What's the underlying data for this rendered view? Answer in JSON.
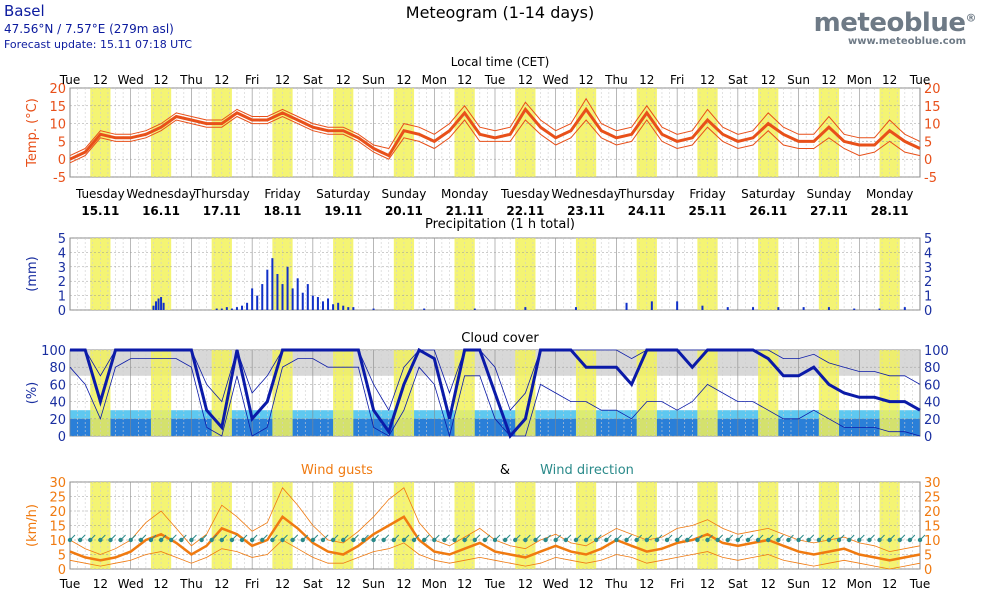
{
  "header": {
    "city": "Basel",
    "coords": "47.56°N / 7.57°E (279m asl)",
    "update": "Forecast update: 15.11 07:18 UTC",
    "title": "Meteogram (1-14 days)",
    "logo": "meteoblue",
    "logo_reg": "®",
    "logo_url": "www.meteoblue.com"
  },
  "colors": {
    "temp": "#e8501a",
    "precip": "#1030c8",
    "cloud": "#0b1aa8",
    "gust": "#f07a10",
    "winddir": "#2a8a8a",
    "daylight": "#f2f25a",
    "axis_blue": "#1a2fa0"
  },
  "top_axis": {
    "title": "Local time (CET)",
    "labels": [
      "Tue",
      "12",
      "Wed",
      "12",
      "Thu",
      "12",
      "Fri",
      "12",
      "Sat",
      "12",
      "Sun",
      "12",
      "Mon",
      "12",
      "Tue",
      "12",
      "Wed",
      "12",
      "Thu",
      "12",
      "Fri",
      "12",
      "Sat",
      "12",
      "Sun",
      "12",
      "Mon",
      "12",
      "Tue"
    ]
  },
  "bottom_axis": {
    "labels": [
      "Tue",
      "12",
      "Wed",
      "12",
      "Thu",
      "12",
      "Fri",
      "12",
      "Sat",
      "12",
      "Sun",
      "12",
      "Mon",
      "12",
      "Tue",
      "12",
      "Wed",
      "12",
      "Thu",
      "12",
      "Fri",
      "12",
      "Sat",
      "12",
      "Sun",
      "12",
      "Mon",
      "12",
      "Tue"
    ]
  },
  "days": {
    "names": [
      "Tuesday",
      "Wednesday",
      "Thursday",
      "Friday",
      "Saturday",
      "Sunday",
      "Monday",
      "Tuesday",
      "Wednesday",
      "Thursday",
      "Friday",
      "Saturday",
      "Sunday",
      "Monday"
    ],
    "dates": [
      "15.11",
      "16.11",
      "17.11",
      "18.11",
      "19.11",
      "20.11",
      "21.11",
      "22.11",
      "23.11",
      "24.11",
      "25.11",
      "26.11",
      "27.11",
      "28.11"
    ]
  },
  "chart_data": [
    {
      "type": "line",
      "ylabel": "Temp. (°C)",
      "ylim": [
        -5,
        20
      ],
      "yticks": [
        -5,
        0,
        5,
        10,
        15,
        20
      ],
      "x_hours": [
        0,
        6,
        12,
        18,
        24,
        30,
        36,
        42,
        48,
        54,
        60,
        66,
        72,
        78,
        84,
        90,
        96,
        102,
        108,
        114,
        120,
        126,
        132,
        138,
        144,
        150,
        156,
        162,
        168,
        174,
        180,
        186,
        192,
        198,
        204,
        210,
        216,
        222,
        228,
        234,
        240,
        246,
        252,
        258,
        264,
        270,
        276,
        282,
        288,
        294,
        300,
        306,
        312,
        318,
        324,
        330,
        336
      ],
      "series": [
        {
          "values": [
            0,
            2,
            7,
            6,
            6,
            7,
            9,
            12,
            11,
            10,
            10,
            13,
            11,
            11,
            13,
            11,
            9,
            8,
            8,
            6,
            3,
            1,
            8,
            7,
            5,
            8,
            13,
            7,
            6,
            7,
            14,
            9,
            6,
            8,
            14,
            8,
            6,
            7,
            13,
            7,
            5,
            6,
            11,
            7,
            5,
            6,
            10,
            7,
            5,
            5,
            9,
            5,
            4,
            4,
            8,
            5,
            3
          ]
        },
        {
          "values": [
            -1,
            1,
            6,
            5,
            5,
            6,
            8,
            11,
            10,
            9,
            9,
            12,
            10,
            10,
            12,
            10,
            8,
            7,
            7,
            5,
            2,
            0,
            6,
            5,
            3,
            6,
            11,
            5,
            5,
            5,
            11,
            7,
            4,
            6,
            11,
            6,
            4,
            5,
            11,
            5,
            3,
            4,
            9,
            5,
            3,
            4,
            8,
            4,
            3,
            3,
            6,
            3,
            1,
            2,
            5,
            2,
            1
          ]
        },
        {
          "values": [
            1,
            3,
            8,
            7,
            7,
            8,
            10,
            13,
            12,
            11,
            11,
            14,
            12,
            12,
            14,
            12,
            10,
            9,
            9,
            7,
            4,
            3,
            10,
            9,
            7,
            10,
            15,
            9,
            8,
            9,
            16,
            11,
            8,
            10,
            17,
            10,
            8,
            9,
            15,
            9,
            7,
            8,
            14,
            9,
            7,
            8,
            13,
            9,
            7,
            7,
            12,
            7,
            6,
            6,
            11,
            7,
            5
          ]
        }
      ]
    },
    {
      "type": "bar",
      "title": "Precipitation (1 h total)",
      "ylabel": "(mm)",
      "ylim": [
        0,
        5
      ],
      "yticks": [
        0,
        1,
        2,
        3,
        4,
        5
      ],
      "x_hours": [
        33,
        34,
        35,
        36,
        37,
        58,
        60,
        62,
        64,
        66,
        68,
        70,
        72,
        74,
        76,
        78,
        80,
        82,
        84,
        86,
        88,
        90,
        92,
        94,
        96,
        98,
        100,
        102,
        104,
        106,
        108,
        110,
        112,
        120,
        140,
        160,
        180,
        200,
        220,
        230,
        240,
        250,
        260,
        270,
        280,
        290,
        300,
        310,
        320,
        330
      ],
      "values": [
        0.3,
        0.6,
        0.8,
        0.9,
        0.5,
        0.1,
        0.1,
        0.2,
        0.1,
        0.2,
        0.3,
        0.5,
        1.5,
        1.0,
        1.8,
        2.8,
        3.6,
        2.5,
        1.8,
        3.0,
        1.5,
        2.2,
        1.2,
        1.8,
        1.0,
        0.9,
        0.6,
        0.8,
        0.4,
        0.5,
        0.3,
        0.2,
        0.2,
        0.1,
        0.1,
        0.1,
        0.2,
        0.2,
        0.5,
        0.6,
        0.6,
        0.3,
        0.2,
        0.2,
        0.2,
        0.2,
        0.2,
        0.1,
        0.1,
        0.2
      ]
    },
    {
      "type": "line",
      "title": "Cloud cover",
      "ylabel": "(%)",
      "ylim": [
        0,
        100
      ],
      "yticks": [
        0,
        20,
        40,
        60,
        80,
        100
      ],
      "x_hours": [
        0,
        6,
        12,
        18,
        24,
        30,
        36,
        42,
        48,
        54,
        60,
        66,
        72,
        78,
        84,
        90,
        96,
        102,
        108,
        114,
        120,
        126,
        132,
        138,
        144,
        150,
        156,
        162,
        168,
        174,
        180,
        186,
        192,
        198,
        204,
        210,
        216,
        222,
        228,
        234,
        240,
        246,
        252,
        258,
        264,
        270,
        276,
        282,
        288,
        294,
        300,
        306,
        312,
        318,
        324,
        330,
        336
      ],
      "series": [
        {
          "values": [
            100,
            100,
            40,
            100,
            100,
            100,
            100,
            100,
            100,
            30,
            10,
            100,
            20,
            40,
            100,
            100,
            100,
            100,
            100,
            100,
            30,
            5,
            60,
            100,
            90,
            20,
            100,
            100,
            50,
            0,
            20,
            100,
            100,
            100,
            80,
            80,
            80,
            60,
            100,
            100,
            100,
            80,
            100,
            100,
            100,
            100,
            90,
            70,
            70,
            80,
            60,
            50,
            45,
            45,
            40,
            40,
            30
          ]
        },
        {
          "values": [
            100,
            100,
            70,
            100,
            100,
            100,
            100,
            100,
            100,
            60,
            40,
            100,
            50,
            70,
            100,
            100,
            100,
            100,
            100,
            100,
            60,
            30,
            80,
            100,
            100,
            50,
            100,
            100,
            80,
            30,
            50,
            100,
            100,
            100,
            100,
            100,
            100,
            90,
            100,
            100,
            100,
            100,
            100,
            100,
            100,
            100,
            100,
            90,
            90,
            95,
            85,
            80,
            75,
            75,
            70,
            70,
            60
          ]
        },
        {
          "values": [
            80,
            60,
            20,
            80,
            90,
            90,
            90,
            90,
            80,
            10,
            0,
            70,
            0,
            10,
            80,
            90,
            90,
            80,
            80,
            80,
            10,
            0,
            30,
            80,
            60,
            0,
            70,
            70,
            20,
            0,
            0,
            60,
            50,
            40,
            40,
            30,
            30,
            20,
            40,
            40,
            30,
            40,
            60,
            50,
            40,
            40,
            30,
            20,
            20,
            30,
            20,
            10,
            10,
            10,
            5,
            5,
            0
          ]
        }
      ]
    },
    {
      "type": "line",
      "ylabel": "(km/h)",
      "ylim": [
        0,
        30
      ],
      "yticks": [
        0,
        5,
        10,
        15,
        20,
        25,
        30
      ],
      "series": [
        {
          "name": "Wind gusts",
          "values": [
            6,
            4,
            3,
            4,
            6,
            10,
            12,
            9,
            5,
            8,
            14,
            12,
            8,
            10,
            18,
            14,
            9,
            6,
            5,
            8,
            12,
            15,
            18,
            10,
            6,
            5,
            7,
            9,
            6,
            5,
            4,
            6,
            8,
            6,
            5,
            7,
            10,
            8,
            6,
            7,
            9,
            10,
            12,
            9,
            8,
            9,
            10,
            8,
            6,
            5,
            6,
            7,
            5,
            4,
            3,
            4,
            5
          ]
        },
        {
          "values": [
            10,
            7,
            5,
            7,
            10,
            16,
            20,
            14,
            8,
            12,
            22,
            18,
            13,
            16,
            28,
            22,
            15,
            10,
            9,
            13,
            18,
            24,
            28,
            16,
            10,
            8,
            11,
            14,
            10,
            8,
            7,
            10,
            12,
            9,
            8,
            11,
            14,
            12,
            10,
            11,
            14,
            15,
            17,
            14,
            12,
            13,
            14,
            12,
            10,
            9,
            10,
            11,
            9,
            8,
            6,
            7,
            8
          ]
        },
        {
          "values": [
            3,
            2,
            1,
            2,
            3,
            5,
            6,
            4,
            2,
            4,
            7,
            6,
            4,
            5,
            10,
            7,
            4,
            2,
            2,
            4,
            6,
            7,
            9,
            5,
            3,
            2,
            3,
            4,
            3,
            2,
            1,
            2,
            4,
            3,
            2,
            3,
            5,
            4,
            2,
            3,
            4,
            5,
            6,
            4,
            3,
            4,
            5,
            3,
            2,
            1,
            2,
            3,
            2,
            1,
            0,
            1,
            2
          ]
        }
      ],
      "title_parts": [
        "Wind gusts",
        "&",
        "Wind direction"
      ]
    }
  ]
}
